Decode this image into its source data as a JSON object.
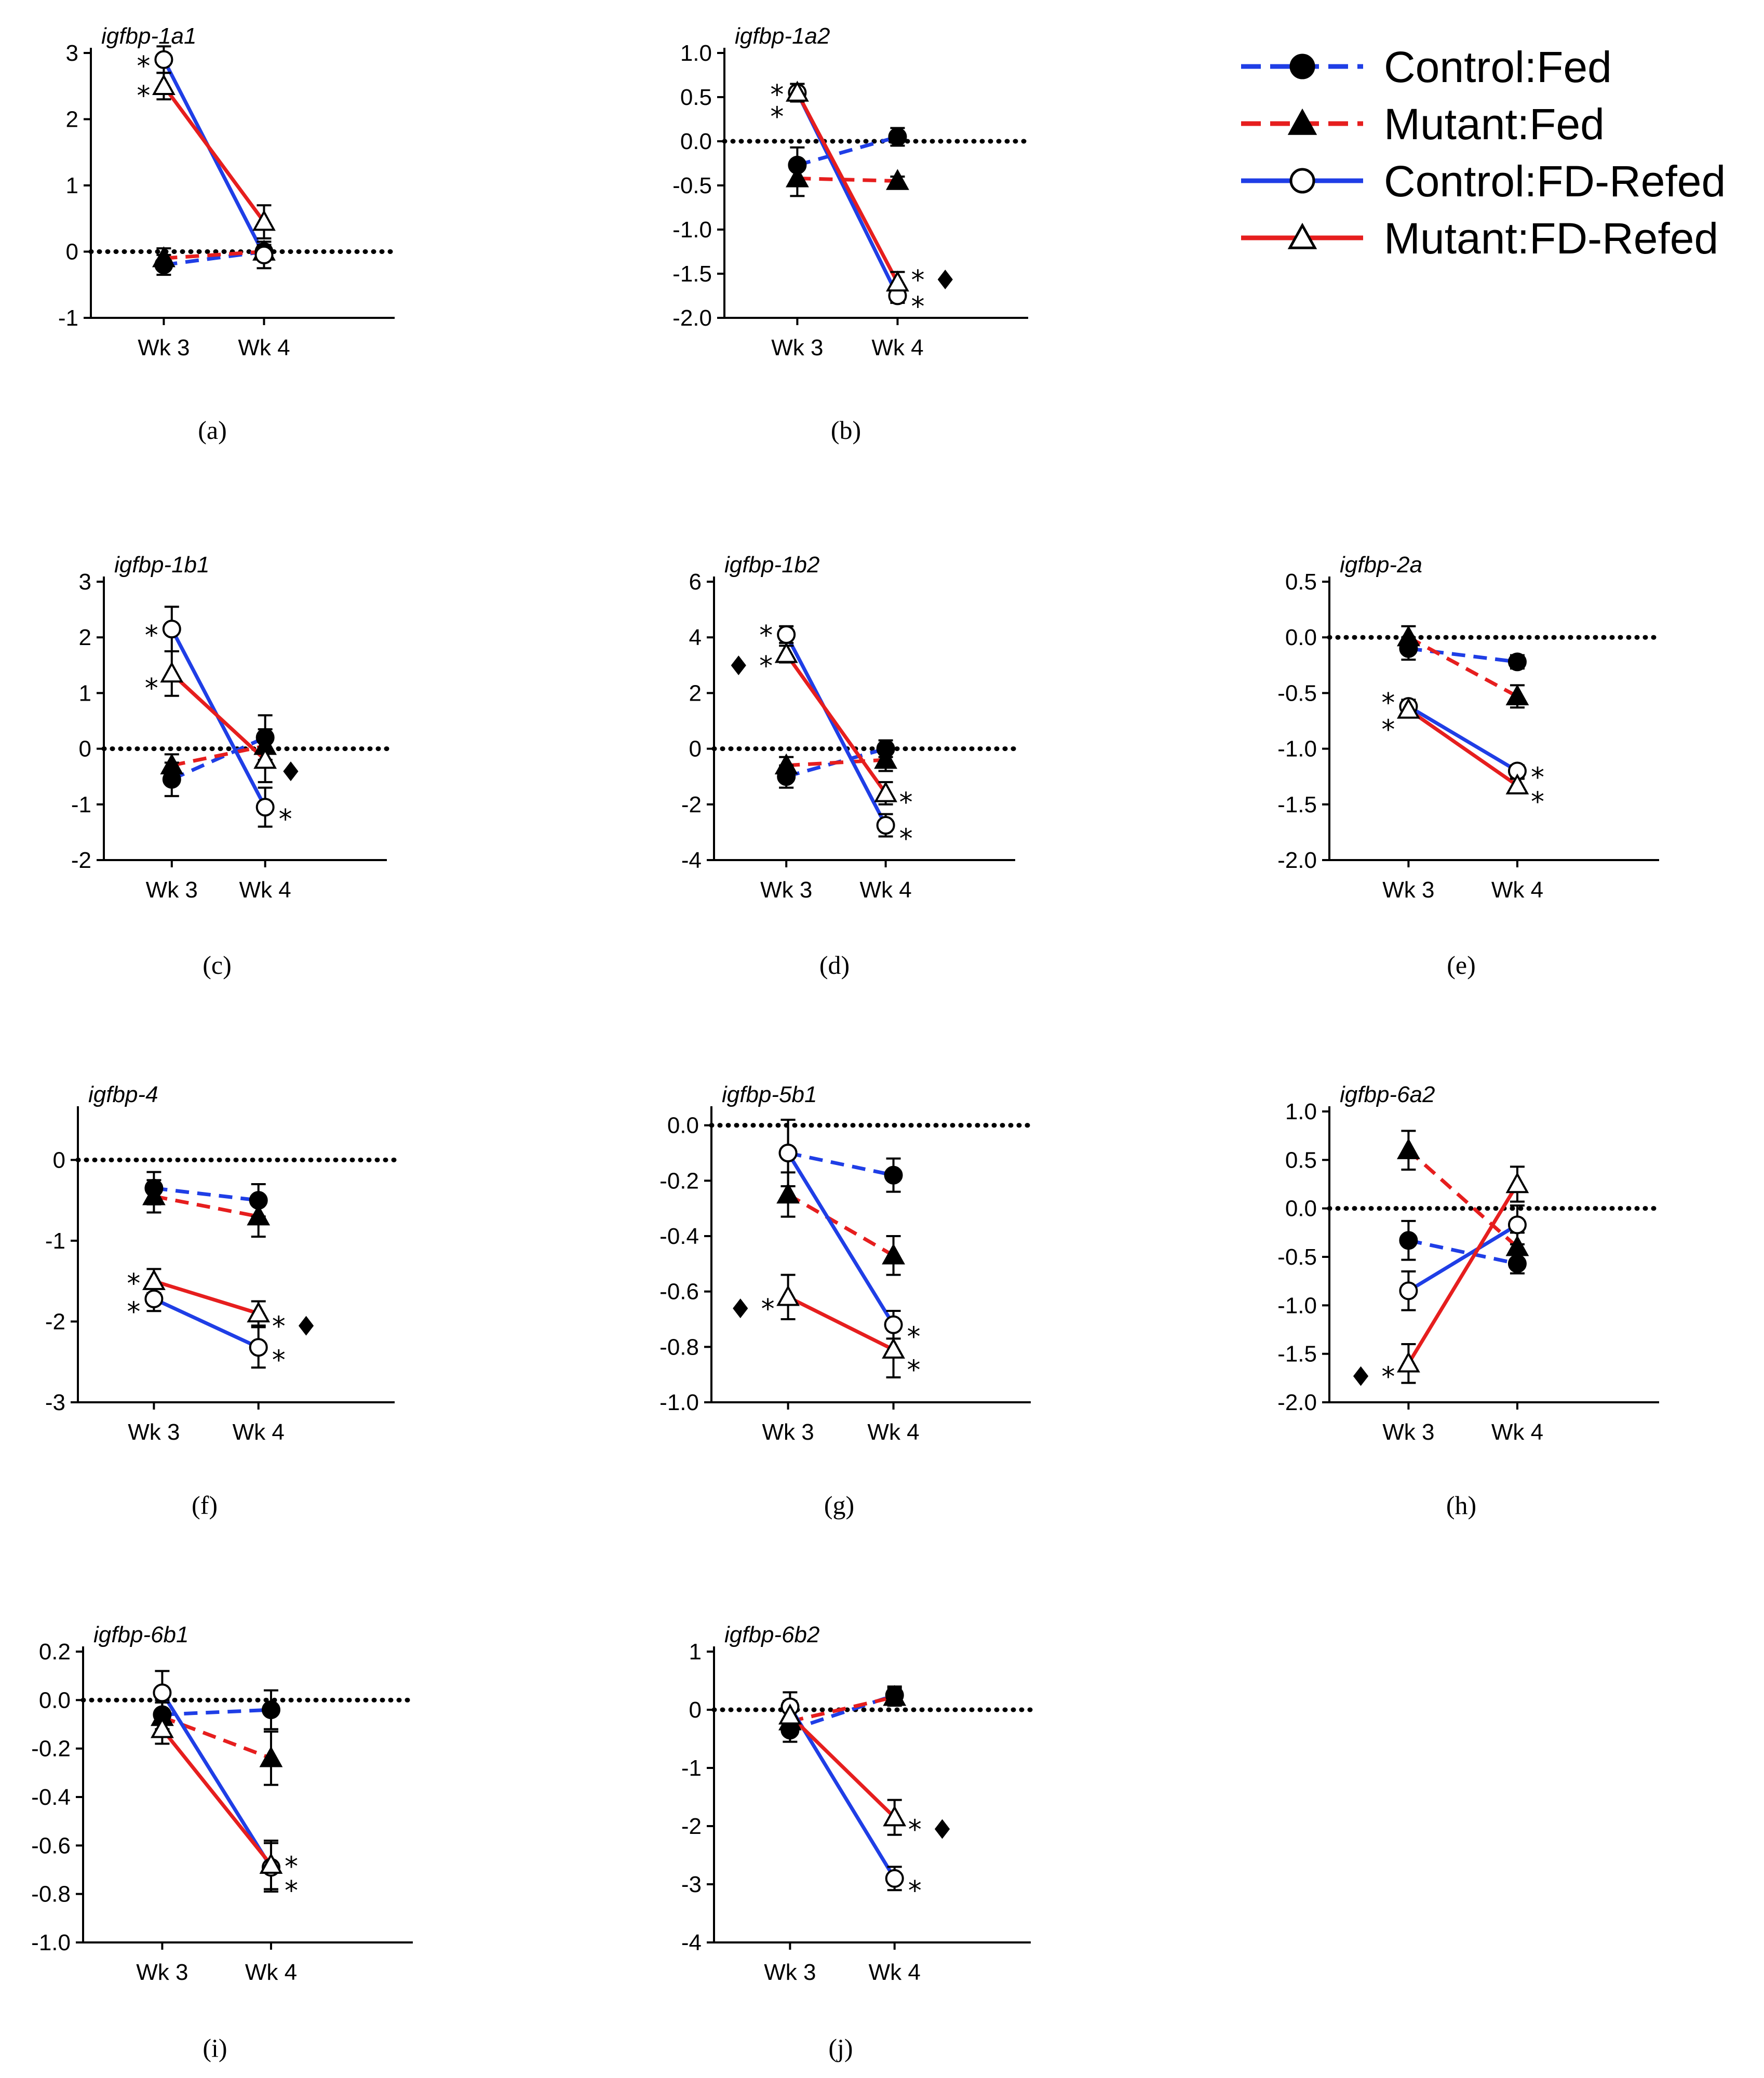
{
  "legend": {
    "entries": [
      {
        "label": "Control:Fed",
        "color": "#1f3ee6",
        "dash": true,
        "marker": "circle-filled"
      },
      {
        "label": "Mutant:Fed",
        "color": "#e61e1e",
        "dash": true,
        "marker": "triangle-filled"
      },
      {
        "label": "Control:FD-Refed",
        "color": "#1f3ee6",
        "dash": false,
        "marker": "circle-open"
      },
      {
        "label": "Mutant:FD-Refed",
        "color": "#e61e1e",
        "dash": false,
        "marker": "triangle-open"
      }
    ]
  },
  "chart_data": [
    {
      "type": "line",
      "panel": "(a)",
      "title": "igfbp-1a1",
      "categories": [
        "Wk 3",
        "Wk 4"
      ],
      "ylim": [
        -1,
        3
      ],
      "yticks": [
        -1,
        0,
        1,
        2,
        3
      ],
      "ytick_labels": [
        "-1",
        "0",
        "1",
        "2",
        "3"
      ],
      "series": [
        {
          "name": "Control:Fed",
          "values": [
            -0.2,
            0.0
          ],
          "errors": [
            0.15,
            0.1
          ]
        },
        {
          "name": "Mutant:Fed",
          "values": [
            -0.1,
            0.0
          ],
          "errors": [
            0.15,
            0.1
          ]
        },
        {
          "name": "Control:FD-Refed",
          "values": [
            2.9,
            -0.05
          ],
          "errors": [
            0.2,
            0.2
          ]
        },
        {
          "name": "Mutant:FD-Refed",
          "values": [
            2.5,
            0.45
          ],
          "errors": [
            0.2,
            0.25
          ]
        }
      ],
      "annotations": [
        {
          "cat": 0,
          "y": 2.9,
          "side": "left",
          "text": "*"
        },
        {
          "cat": 0,
          "y": 2.45,
          "side": "left",
          "text": "*"
        }
      ]
    },
    {
      "type": "line",
      "panel": "(b)",
      "title": "igfbp-1a2",
      "categories": [
        "Wk 3",
        "Wk 4"
      ],
      "ylim": [
        -2.0,
        1.0
      ],
      "yticks": [
        -2.0,
        -1.5,
        -1.0,
        -0.5,
        0.0,
        0.5,
        1.0
      ],
      "ytick_labels": [
        "-2.0",
        "-1.5",
        "-1.0",
        "-0.5",
        "0.0",
        "0.5",
        "1.0"
      ],
      "series": [
        {
          "name": "Control:Fed",
          "values": [
            -0.27,
            0.05
          ],
          "errors": [
            0.2,
            0.1
          ]
        },
        {
          "name": "Mutant:Fed",
          "values": [
            -0.42,
            -0.45
          ],
          "errors": [
            0.2,
            0.05
          ]
        },
        {
          "name": "Control:FD-Refed",
          "values": [
            0.55,
            -1.75
          ],
          "errors": [
            0.1,
            0.08
          ]
        },
        {
          "name": "Mutant:FD-Refed",
          "values": [
            0.55,
            -1.6
          ],
          "errors": [
            0.1,
            0.12
          ]
        }
      ],
      "annotations": [
        {
          "cat": 0,
          "y": 0.6,
          "side": "left",
          "text": "*"
        },
        {
          "cat": 0,
          "y": 0.35,
          "side": "left",
          "text": "*"
        },
        {
          "cat": 1,
          "y": -1.5,
          "side": "right",
          "text": "* ♦"
        },
        {
          "cat": 1,
          "y": -1.8,
          "side": "right",
          "text": "*"
        }
      ]
    },
    {
      "type": "line",
      "panel": "(c)",
      "title": "igfbp-1b1",
      "categories": [
        "Wk 3",
        "Wk 4"
      ],
      "ylim": [
        -2,
        3
      ],
      "yticks": [
        -2,
        -1,
        0,
        1,
        2,
        3
      ],
      "ytick_labels": [
        "-2",
        "-1",
        "0",
        "1",
        "2",
        "3"
      ],
      "series": [
        {
          "name": "Control:Fed",
          "values": [
            -0.55,
            0.2
          ],
          "errors": [
            0.3,
            0.4
          ]
        },
        {
          "name": "Mutant:Fed",
          "values": [
            -0.3,
            0.05
          ],
          "errors": [
            0.2,
            0.3
          ]
        },
        {
          "name": "Control:FD-Refed",
          "values": [
            2.15,
            -1.05
          ],
          "errors": [
            0.4,
            0.35
          ]
        },
        {
          "name": "Mutant:FD-Refed",
          "values": [
            1.35,
            -0.2
          ],
          "errors": [
            0.4,
            0.4
          ]
        }
      ],
      "annotations": [
        {
          "cat": 0,
          "y": 2.15,
          "side": "left",
          "text": "*"
        },
        {
          "cat": 0,
          "y": 1.2,
          "side": "left",
          "text": "*"
        },
        {
          "cat": 1,
          "y": -0.3,
          "side": "right",
          "text": "♦"
        },
        {
          "cat": 1,
          "y": -1.15,
          "side": "right",
          "text": "*"
        }
      ]
    },
    {
      "type": "line",
      "panel": "(d)",
      "title": "igfbp-1b2",
      "categories": [
        "Wk 3",
        "Wk 4"
      ],
      "ylim": [
        -4,
        6
      ],
      "yticks": [
        -4,
        -2,
        0,
        2,
        4,
        6
      ],
      "ytick_labels": [
        "-4",
        "-2",
        "0",
        "2",
        "4",
        "6"
      ],
      "series": [
        {
          "name": "Control:Fed",
          "values": [
            -1.0,
            0.0
          ],
          "errors": [
            0.4,
            0.3
          ]
        },
        {
          "name": "Mutant:Fed",
          "values": [
            -0.6,
            -0.4
          ],
          "errors": [
            0.3,
            0.4
          ]
        },
        {
          "name": "Control:FD-Refed",
          "values": [
            4.1,
            -2.75
          ],
          "errors": [
            0.3,
            0.4
          ]
        },
        {
          "name": "Mutant:FD-Refed",
          "values": [
            3.4,
            -1.6
          ],
          "errors": [
            0.3,
            0.4
          ]
        }
      ],
      "annotations": [
        {
          "cat": 0,
          "y": 4.3,
          "side": "left",
          "text": "*"
        },
        {
          "cat": 0,
          "y": 3.2,
          "side": "left",
          "text": "♦ *"
        },
        {
          "cat": 1,
          "y": -1.7,
          "side": "right",
          "text": "*"
        },
        {
          "cat": 1,
          "y": -3.0,
          "side": "right",
          "text": "*"
        }
      ]
    },
    {
      "type": "line",
      "panel": "(e)",
      "title": "igfbp-2a",
      "categories": [
        "Wk 3",
        "Wk 4"
      ],
      "ylim": [
        -2.0,
        0.5
      ],
      "yticks": [
        -2.0,
        -1.5,
        -1.0,
        -0.5,
        0.0,
        0.5
      ],
      "ytick_labels": [
        "-2.0",
        "-1.5",
        "-1.0",
        "-0.5",
        "0.0",
        "0.5"
      ],
      "series": [
        {
          "name": "Control:Fed",
          "values": [
            -0.1,
            -0.22
          ],
          "errors": [
            0.1,
            0.06
          ]
        },
        {
          "name": "Mutant:Fed",
          "values": [
            0.0,
            -0.53
          ],
          "errors": [
            0.1,
            0.1
          ]
        },
        {
          "name": "Control:FD-Refed",
          "values": [
            -0.62,
            -1.2
          ],
          "errors": [
            0.06,
            0.05
          ]
        },
        {
          "name": "Mutant:FD-Refed",
          "values": [
            -0.65,
            -1.33
          ],
          "errors": [
            0.06,
            0.06
          ]
        }
      ],
      "annotations": [
        {
          "cat": 0,
          "y": -0.53,
          "side": "left",
          "text": "*"
        },
        {
          "cat": 0,
          "y": -0.77,
          "side": "left",
          "text": "*"
        },
        {
          "cat": 1,
          "y": -1.2,
          "side": "right",
          "text": "*"
        },
        {
          "cat": 1,
          "y": -1.42,
          "side": "right",
          "text": "*"
        }
      ]
    },
    {
      "type": "line",
      "panel": "(f)",
      "title": "igfbp-4",
      "categories": [
        "Wk 3",
        "Wk 4"
      ],
      "ylim": [
        -3,
        0.6
      ],
      "yticks": [
        -3,
        -2,
        -1,
        0
      ],
      "ytick_labels": [
        "-3",
        "-2",
        "-1",
        "0"
      ],
      "series": [
        {
          "name": "Control:Fed",
          "values": [
            -0.35,
            -0.5
          ],
          "errors": [
            0.2,
            0.2
          ]
        },
        {
          "name": "Mutant:Fed",
          "values": [
            -0.45,
            -0.7
          ],
          "errors": [
            0.2,
            0.25
          ]
        },
        {
          "name": "Control:FD-Refed",
          "values": [
            -1.72,
            -2.32
          ],
          "errors": [
            0.15,
            0.25
          ]
        },
        {
          "name": "Mutant:FD-Refed",
          "values": [
            -1.5,
            -1.9
          ],
          "errors": [
            0.15,
            0.15
          ]
        }
      ],
      "annotations": [
        {
          "cat": 0,
          "y": -1.45,
          "side": "left",
          "text": "*"
        },
        {
          "cat": 0,
          "y": -1.8,
          "side": "left",
          "text": "*"
        },
        {
          "cat": 1,
          "y": -1.98,
          "side": "right",
          "text": "* ♦"
        },
        {
          "cat": 1,
          "y": -2.4,
          "side": "right",
          "text": "*"
        }
      ]
    },
    {
      "type": "line",
      "panel": "(g)",
      "title": "igfbp-5b1",
      "categories": [
        "Wk 3",
        "Wk 4"
      ],
      "ylim": [
        -1.0,
        0.05
      ],
      "yticks": [
        -1.0,
        -0.8,
        -0.6,
        -0.4,
        -0.2,
        0.0
      ],
      "ytick_labels": [
        "-1.0",
        "-0.8",
        "-0.6",
        "-0.4",
        "-0.2",
        "0.0"
      ],
      "series": [
        {
          "name": "Control:Fed",
          "values": [
            -0.1,
            -0.18
          ],
          "errors": [
            0.12,
            0.06
          ]
        },
        {
          "name": "Mutant:Fed",
          "values": [
            -0.25,
            -0.47
          ],
          "errors": [
            0.08,
            0.07
          ]
        },
        {
          "name": "Control:FD-Refed",
          "values": [
            -0.1,
            -0.72
          ],
          "errors": [
            0.12,
            0.05
          ]
        },
        {
          "name": "Mutant:FD-Refed",
          "values": [
            -0.62,
            -0.81
          ],
          "errors": [
            0.08,
            0.1
          ]
        }
      ],
      "annotations": [
        {
          "cat": 0,
          "y": -0.64,
          "side": "left",
          "text": "♦ *"
        },
        {
          "cat": 1,
          "y": -0.74,
          "side": "right",
          "text": "*"
        },
        {
          "cat": 1,
          "y": -0.86,
          "side": "right",
          "text": "*"
        }
      ]
    },
    {
      "type": "line",
      "panel": "(h)",
      "title": "igfbp-6a2",
      "categories": [
        "Wk 3",
        "Wk 4"
      ],
      "ylim": [
        -2.0,
        1.0
      ],
      "yticks": [
        -2.0,
        -1.5,
        -1.0,
        -0.5,
        0.0,
        0.5,
        1.0
      ],
      "ytick_labels": [
        "-2.0",
        "-1.5",
        "-1.0",
        "-0.5",
        "0.0",
        "0.5",
        "1.0"
      ],
      "series": [
        {
          "name": "Control:Fed",
          "values": [
            -0.33,
            -0.57
          ],
          "errors": [
            0.2,
            0.1
          ]
        },
        {
          "name": "Mutant:Fed",
          "values": [
            0.6,
            -0.4
          ],
          "errors": [
            0.2,
            0.15
          ]
        },
        {
          "name": "Control:FD-Refed",
          "values": [
            -0.85,
            -0.17
          ],
          "errors": [
            0.2,
            0.2
          ]
        },
        {
          "name": "Mutant:FD-Refed",
          "values": [
            -1.6,
            0.25
          ],
          "errors": [
            0.2,
            0.18
          ]
        }
      ],
      "annotations": [
        {
          "cat": 0,
          "y": -1.67,
          "side": "left",
          "text": "♦ *"
        }
      ]
    },
    {
      "type": "line",
      "panel": "(i)",
      "title": "igfbp-6b1",
      "categories": [
        "Wk 3",
        "Wk 4"
      ],
      "ylim": [
        -1.0,
        0.2
      ],
      "yticks": [
        -1.0,
        -0.8,
        -0.6,
        -0.4,
        -0.2,
        0.0,
        0.2
      ],
      "ytick_labels": [
        "-1.0",
        "-0.8",
        "-0.6",
        "-0.4",
        "-0.2",
        "0.0",
        "0.2"
      ],
      "series": [
        {
          "name": "Control:Fed",
          "values": [
            -0.06,
            -0.04
          ],
          "errors": [
            0.06,
            0.08
          ]
        },
        {
          "name": "Mutant:Fed",
          "values": [
            -0.07,
            -0.24
          ],
          "errors": [
            0.06,
            0.11
          ]
        },
        {
          "name": "Control:FD-Refed",
          "values": [
            0.03,
            -0.69
          ],
          "errors": [
            0.09,
            0.1
          ]
        },
        {
          "name": "Mutant:FD-Refed",
          "values": [
            -0.12,
            -0.68
          ],
          "errors": [
            0.06,
            0.1
          ]
        }
      ],
      "annotations": [
        {
          "cat": 1,
          "y": -0.66,
          "side": "right",
          "text": "*"
        },
        {
          "cat": 1,
          "y": -0.76,
          "side": "right",
          "text": "*"
        }
      ]
    },
    {
      "type": "line",
      "panel": "(j)",
      "title": "igfbp-6b2",
      "categories": [
        "Wk 3",
        "Wk 4"
      ],
      "ylim": [
        -4,
        1
      ],
      "yticks": [
        -4,
        -3,
        -2,
        -1,
        0,
        1
      ],
      "ytick_labels": [
        "-4",
        "-3",
        "-2",
        "-1",
        "0",
        "1"
      ],
      "series": [
        {
          "name": "Control:Fed",
          "values": [
            -0.35,
            0.25
          ],
          "errors": [
            0.2,
            0.15
          ]
        },
        {
          "name": "Mutant:Fed",
          "values": [
            -0.2,
            0.22
          ],
          "errors": [
            0.2,
            0.15
          ]
        },
        {
          "name": "Control:FD-Refed",
          "values": [
            0.05,
            -2.9
          ],
          "errors": [
            0.25,
            0.2
          ]
        },
        {
          "name": "Mutant:FD-Refed",
          "values": [
            -0.1,
            -1.85
          ],
          "errors": [
            0.25,
            0.3
          ]
        }
      ],
      "annotations": [
        {
          "cat": 1,
          "y": -1.95,
          "side": "right",
          "text": "* ♦"
        },
        {
          "cat": 1,
          "y": -3.0,
          "side": "right",
          "text": "*"
        }
      ]
    }
  ]
}
